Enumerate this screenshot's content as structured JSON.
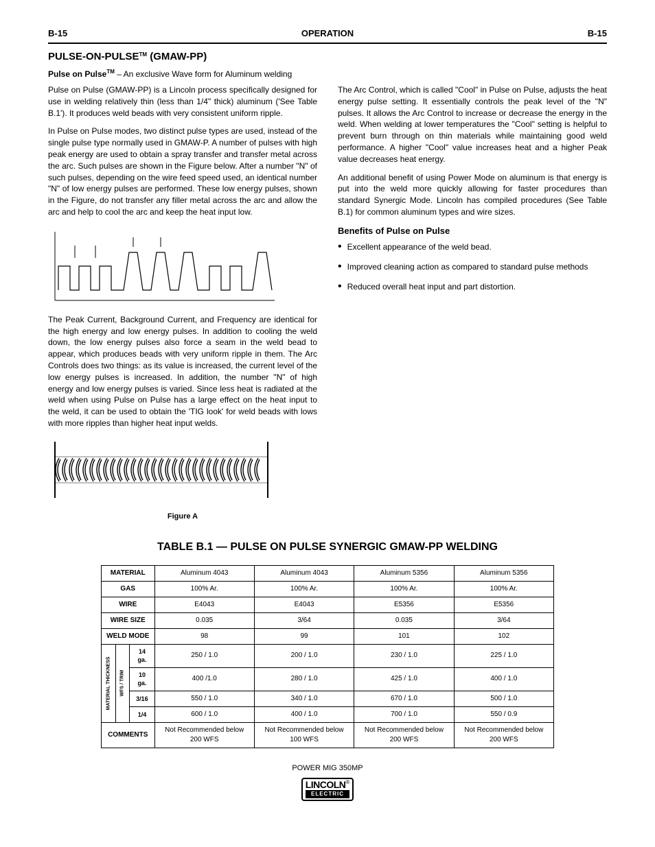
{
  "header": {
    "left": "B-15",
    "center": "OPERATION",
    "right": "B-15"
  },
  "titles": {
    "main1_prefix": "PULSE-ON-PULSE",
    "main1_suffix": " (GMAW-PP)",
    "main2_prefix": "Pulse on Pulse",
    "main2_suffix": " – An exclusive Wave form for Aluminum welding",
    "benefits": "Benefits of Pulse on Pulse",
    "table": "TABLE B.1 — PULSE ON PULSE SYNERGIC GMAW-PP WELDING"
  },
  "left_col": {
    "p1": "Pulse on Pulse (GMAW-PP) is a Lincoln process specifically designed for use in welding relatively thin (less than 1/4\" thick) aluminum ('See Table B.1'). It produces weld beads with very consistent uniform ripple.",
    "p2": "In Pulse on Pulse modes, two distinct pulse types are used, instead of the single pulse type normally used in GMAW-P. A number of pulses with high peak energy are used to obtain a spray transfer and transfer metal across the arc. Such pulses are shown in the Figure below. After a number \"N\" of such pulses, depending on the wire feed speed used, an identical number \"N\" of low energy pulses are performed. These low energy pulses, shown in the Figure, do not transfer any filler metal across the arc and allow the arc and help to cool the arc and keep the heat input low.",
    "p3": "The Peak Current, Background Current, and Frequency are identical for the high energy and low energy pulses. In addition to cooling the weld down, the low energy pulses also force a seam in the weld bead to appear, which produces beads with very uniform ripple in them. The Arc Controls does two things: as its value is increased, the current level of the low energy pulses is increased. In addition, the number \"N\" of high energy and low energy pulses is varied. Since less heat is radiated at the weld when using Pulse on Pulse has a large effect on the heat input to the weld, it can be used to obtain the 'TIG look' for weld beads with lows with more ripples than higher heat input welds."
  },
  "right_col": {
    "p1": "The Arc Control, which is called \"Cool\" in Pulse on Pulse, adjusts the heat energy pulse setting. It essentially controls the peak level of the \"N\" pulses. It allows the Arc Control to increase or decrease the energy in the weld. When welding at lower temperatures the \"Cool\" setting is helpful to prevent burn through on thin materials while maintaining good weld performance. A higher \"Cool\" value increases heat and a higher Peak value decreases heat energy.",
    "p2": "An additional benefit of using Power Mode on aluminum is that energy is put into the weld more quickly allowing for faster procedures than standard Synergic Mode. Lincoln has compiled procedures (See Table B.1) for common aluminum types and wire sizes.",
    "b1": "Excellent appearance of the weld bead.",
    "b2": "Improved cleaning action as compared to standard pulse methods",
    "b3": "Reduced overall heat input and part distortion."
  },
  "fig_a": "Figure A",
  "table": {
    "row_labels": {
      "material": "MATERIAL",
      "gas": "GAS",
      "wire": "WIRE",
      "wiresize": "WIRE SIZE",
      "weldmode": "WELD MODE",
      "comments": "COMMENTS"
    },
    "vlabels": {
      "matthick": "MATERIAL\nTHICKNESS",
      "wfstrim": "WFS / TRIM"
    },
    "thick": [
      "14 ga.",
      "10 ga.",
      "3/16",
      "1/4"
    ],
    "cols": [
      {
        "material": "Aluminum 4043",
        "gas": "100% Ar.",
        "wire": "E4043",
        "wiresize": "0.035",
        "weldmode": "98",
        "r1": "250 / 1.0",
        "r2": "400 /1.0",
        "r3": "550 / 1.0",
        "r4": "600 / 1.0",
        "comments": "Not Recommended below 200 WFS"
      },
      {
        "material": "Aluminum 4043",
        "gas": "100% Ar.",
        "wire": "E4043",
        "wiresize": "3/64",
        "weldmode": "99",
        "r1": "200 / 1.0",
        "r2": "280 / 1.0",
        "r3": "340 / 1.0",
        "r4": "400 / 1.0",
        "comments": "Not Recommended below 100 WFS"
      },
      {
        "material": "Aluminum 5356",
        "gas": "100% Ar.",
        "wire": "E5356",
        "wiresize": "0.035",
        "weldmode": "101",
        "r1": "230 / 1.0",
        "r2": "425 / 1.0",
        "r3": "670 / 1.0",
        "r4": "700 / 1.0",
        "comments": "Not Recommended below 200 WFS"
      },
      {
        "material": "Aluminum 5356",
        "gas": "100% Ar.",
        "wire": "E5356",
        "wiresize": "3/64",
        "weldmode": "102",
        "r1": "225 / 1.0",
        "r2": "400 / 1.0",
        "r3": "500 / 1.0",
        "r4": "550 / 0.9",
        "comments": "Not Recommended below 200 WFS"
      }
    ]
  },
  "footer": {
    "ps": "POWER MIG 350MP",
    "logo_top": "LINCOLN",
    "logo_bottom": "ELECTRIC"
  }
}
